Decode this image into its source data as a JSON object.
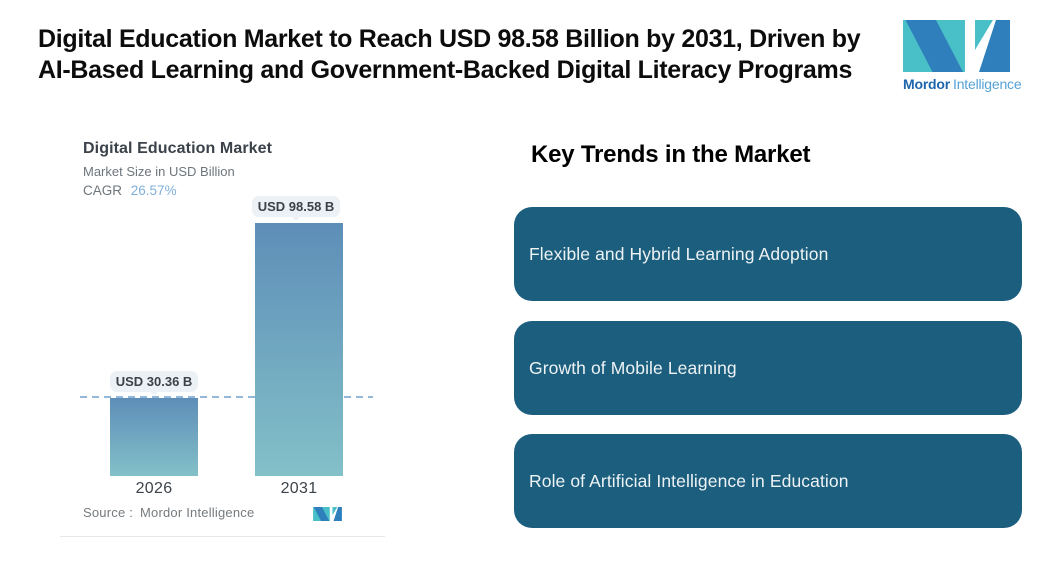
{
  "header": {
    "headline_line1": "Digital Education Market to Reach USD 98.58 Billion by 2031, Driven by",
    "headline_line2": "AI-Based Learning and Government-Backed Digital Literacy Programs",
    "logo": {
      "name_bold": "Mordor",
      "name_light": "Intelligence"
    }
  },
  "chart_data": {
    "type": "bar",
    "title": "Digital Education Market",
    "subtitle": "Market Size in USD Billion",
    "cagr_label": "CAGR",
    "cagr_value": "26.57%",
    "categories": [
      "2026",
      "2031"
    ],
    "values": [
      30.36,
      98.58
    ],
    "value_labels": [
      "USD 30.36 B",
      "USD 98.58 B"
    ],
    "unit": "USD Billion",
    "ylim": [
      0,
      98.58
    ],
    "grid": false,
    "dashed_reference_value": 30.36,
    "source_label": "Source :",
    "source_value": "Mordor Intelligence",
    "colors": {
      "bar_gradient_top": "#5e8eb8",
      "bar_gradient_bottom": "#83c0c8",
      "dashed_line": "#93b7d8",
      "cagr_value_text": "#7fb0da",
      "logo_teal": "#49c0c8",
      "logo_blue": "#2f7fbd"
    }
  },
  "trends": {
    "heading": "Key Trends in the Market",
    "card_color": "#1c5e7e",
    "items": [
      {
        "label": "Flexible and Hybrid Learning Adoption"
      },
      {
        "label": "Growth of Mobile Learning"
      },
      {
        "label": "Role of Artificial Intelligence in Education"
      }
    ]
  }
}
